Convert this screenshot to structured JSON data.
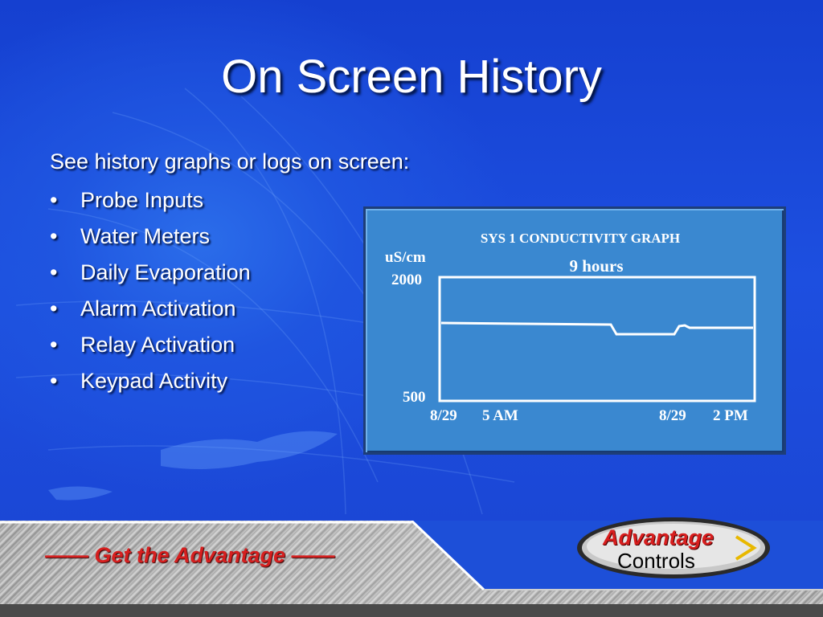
{
  "slide": {
    "title": "On Screen History",
    "intro": "See history graphs or logs on screen:",
    "bullet_char": "•",
    "bullets": [
      "Probe Inputs",
      "Water Meters",
      "Daily Evaporation",
      "Alarm Activation",
      "Relay Activation",
      "Keypad Activity"
    ]
  },
  "graph": {
    "title": "SYS 1 CONDUCTIVITY GRAPH",
    "unit": "uS/cm",
    "duration": "9 hours",
    "y_max_label": "2000",
    "y_min_label": "500",
    "x_start_date": "8/29",
    "x_start_time": "5 AM",
    "x_end_date": "8/29",
    "x_end_time": "2 PM"
  },
  "footer": {
    "slogan": "—— Get the Advantage ——",
    "logo_line1": "Advantage",
    "logo_line2": "Controls"
  },
  "colors": {
    "background": "#1a44d2",
    "panel": "#3a88d0",
    "slogan": "#d61f1f",
    "logo_red": "#d81e1e"
  }
}
